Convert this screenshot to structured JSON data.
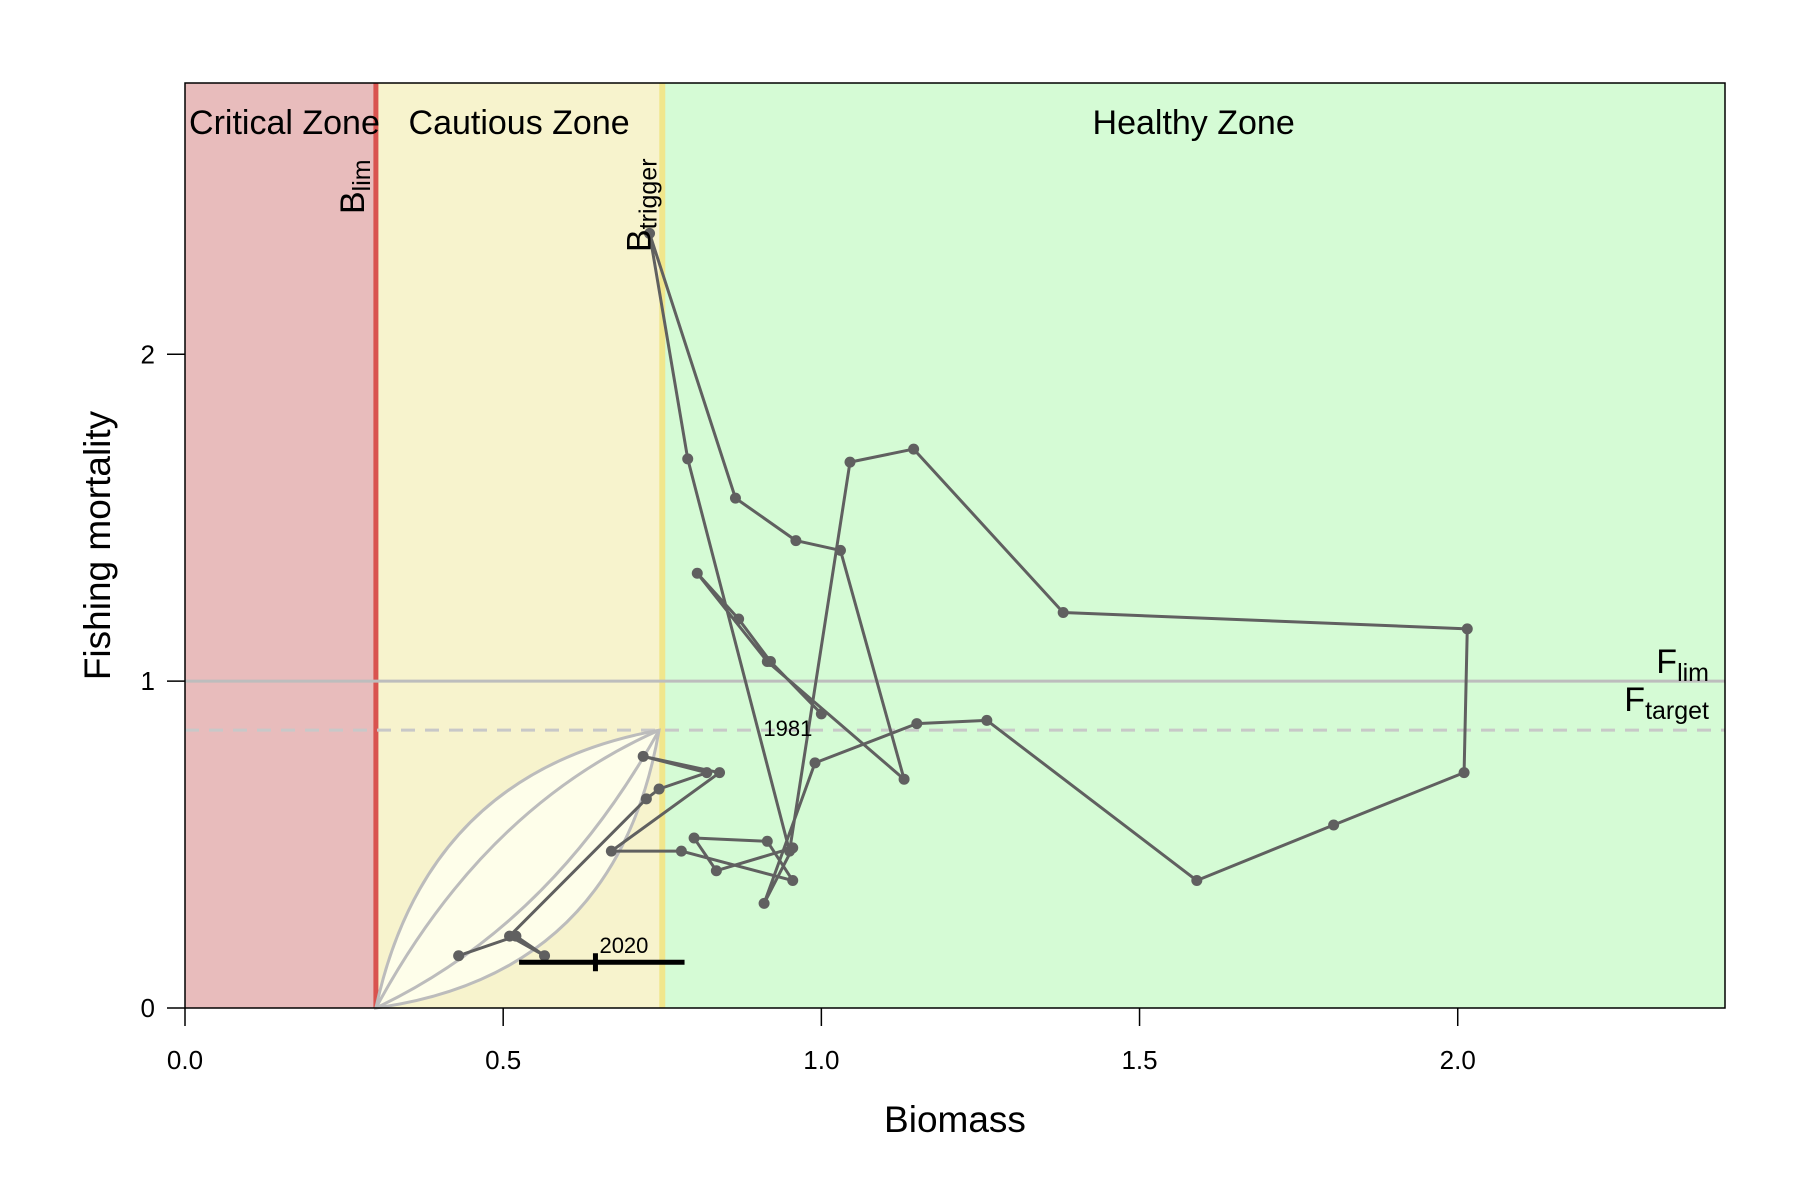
{
  "chart_data": {
    "type": "line",
    "title": "",
    "xlabel": "Biomass",
    "ylabel": "Fishing mortality",
    "xlim": [
      0,
      2.42
    ],
    "ylim": [
      0,
      2.83
    ],
    "x_ticks": [
      "0.0",
      "0.5",
      "1.0",
      "1.5",
      "2.0"
    ],
    "x_tick_values": [
      0,
      0.5,
      1.0,
      1.5,
      2.0
    ],
    "y_ticks": [
      "0",
      "1",
      "2"
    ],
    "y_tick_values": [
      0,
      1,
      2
    ],
    "grid": false,
    "zones": [
      {
        "name": "Critical Zone",
        "from": 0,
        "to": 0.3,
        "color": "#e8bcbc"
      },
      {
        "name": "Cautious Zone",
        "from": 0.3,
        "to": 0.75,
        "color": "#f7f3cd"
      },
      {
        "name": "Healthy Zone",
        "from": 0.75,
        "to": 2.42,
        "color": "#d5fbd5"
      }
    ],
    "reference_points": {
      "blim": {
        "label": "B",
        "sub": "lim",
        "value": 0.3,
        "color": "#d9534f"
      },
      "btrigger": {
        "label": "B",
        "sub": "trigger",
        "value": 0.75,
        "color": "#f0e68c"
      },
      "flim": {
        "label": "F",
        "sub": "lim",
        "value": 1.0,
        "color": "#bdbdbd",
        "style": "solid"
      },
      "ftarget": {
        "label": "F",
        "sub": "target",
        "value": 0.85,
        "color": "#c8c8c8",
        "style": "dashed"
      }
    },
    "series": [
      {
        "color": "#606060",
        "years": [
          1981,
          2020
        ],
        "x": [
          1.0,
          0.92,
          0.87,
          0.805,
          0.915,
          1.13,
          1.03,
          0.96,
          0.865,
          0.73,
          0.79,
          0.95,
          1.045,
          1.145,
          1.38,
          2.015,
          2.01,
          1.805,
          1.59,
          1.26,
          1.15,
          0.99,
          0.91,
          0.955,
          0.835,
          0.8,
          0.915,
          0.955,
          0.78,
          0.67,
          0.84,
          0.72,
          0.82,
          0.745,
          0.725,
          0.51,
          0.565,
          0.52,
          0.43
        ],
        "y": [
          0.9,
          1.06,
          1.19,
          1.33,
          1.06,
          0.7,
          1.4,
          1.43,
          1.56,
          2.37,
          1.68,
          0.48,
          1.67,
          1.71,
          1.21,
          1.16,
          0.72,
          0.56,
          0.39,
          0.88,
          0.87,
          0.75,
          0.32,
          0.49,
          0.42,
          0.52,
          0.51,
          0.39,
          0.48,
          0.48,
          0.72,
          0.77,
          0.72,
          0.67,
          0.64,
          0.22,
          0.16,
          0.22,
          0.16
        ]
      }
    ],
    "uncertainty_region": {
      "color": "#bcbcbc",
      "fill": "#fefeea",
      "vertex_start": [
        0.3,
        0.0
      ],
      "vertex_end": [
        0.745,
        0.85
      ]
    },
    "terminal_interval": {
      "year": "2020",
      "x": 0.645,
      "y": 0.14,
      "x_low": 0.525,
      "x_high": 0.785,
      "color": "#000000"
    },
    "annotations": [
      {
        "text": "1981"
      },
      {
        "text": "2020"
      }
    ]
  }
}
